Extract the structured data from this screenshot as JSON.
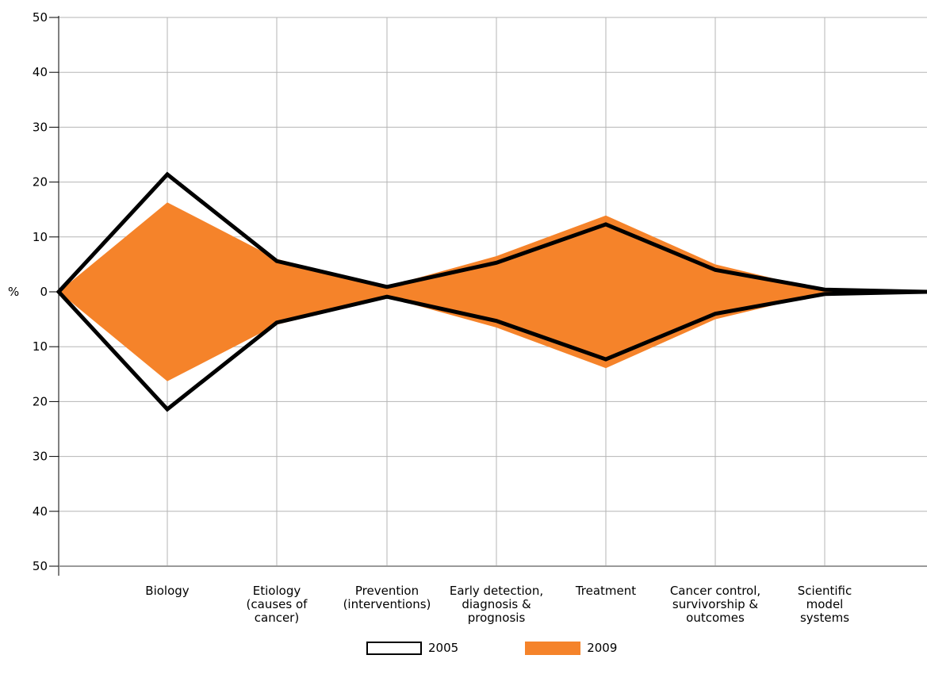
{
  "chart_data": {
    "type": "area",
    "ylabel": "%",
    "y_ticks_upper": [
      "50",
      "40",
      "30",
      "20",
      "10",
      "0"
    ],
    "y_ticks_lower": [
      "10",
      "20",
      "30",
      "40",
      "50"
    ],
    "ylim": [
      -50,
      50
    ],
    "grid": true,
    "categories": [
      "",
      "Biology",
      "Etiology (causes of cancer)",
      "Prevention (interventions)",
      "Early detection, diagnosis & prognosis",
      "Treatment",
      "Cancer control, survivorship & outcomes",
      "Scientific model systems",
      ""
    ],
    "category_lines": [
      [
        ""
      ],
      [
        "Biology"
      ],
      [
        "Etiology",
        "(causes of",
        "cancer)"
      ],
      [
        "Prevention",
        "(interventions)"
      ],
      [
        "Early detection,",
        "diagnosis &",
        "prognosis"
      ],
      [
        "Treatment"
      ],
      [
        "Cancer control,",
        "survivorship &",
        "outcomes"
      ],
      [
        "Scientific",
        "model",
        "systems"
      ],
      [
        ""
      ]
    ],
    "series": [
      {
        "name": "2005",
        "style": "outline",
        "color": "#000000",
        "values": [
          0,
          21.4,
          5.6,
          0.9,
          5.3,
          12.3,
          4.0,
          0.4,
          0
        ]
      },
      {
        "name": "2009",
        "style": "filled",
        "color": "#f5832a",
        "values": [
          0,
          16.3,
          6.0,
          1.0,
          6.5,
          13.9,
          5.0,
          0.2,
          0
        ]
      }
    ],
    "legend": {
      "position": "bottom-center",
      "items": [
        {
          "label": "2005",
          "color": "#000000",
          "style": "outline"
        },
        {
          "label": "2009",
          "color": "#f5832a",
          "style": "filled"
        }
      ]
    }
  }
}
